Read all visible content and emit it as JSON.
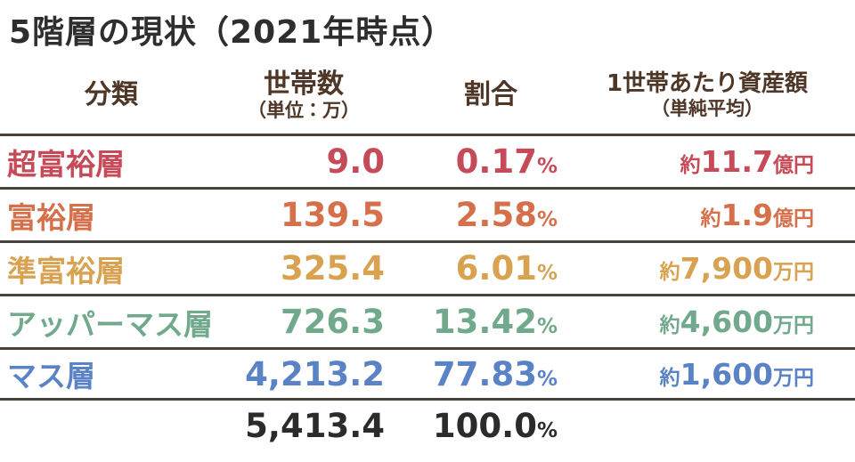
{
  "title": "5階層の現状（2021年時点）",
  "colors": {
    "title_text": "#2e2e2e",
    "header_text": "#4f3728",
    "separator_line": "#49423a",
    "total_text": "#2b2b2b"
  },
  "table": {
    "headers": {
      "category": "分類",
      "households": "世帯数",
      "households_unit": "（単位：万）",
      "ratio": "割合",
      "asset": "1世帯あたり資産額",
      "asset_note": "（単純平均）"
    },
    "percent_sign": "%",
    "rows": [
      {
        "label": "超富裕層",
        "households": "9.0",
        "ratio": "0.17",
        "asset_prefix": "約",
        "asset_value": "11.7",
        "asset_unit": "億円",
        "color": "#c64a57"
      },
      {
        "label": "富裕層",
        "households": "139.5",
        "ratio": "2.58",
        "asset_prefix": "約",
        "asset_value": "1.9",
        "asset_unit": "億円",
        "color": "#d5704b"
      },
      {
        "label": "準富裕層",
        "households": "325.4",
        "ratio": "6.01",
        "asset_prefix": "約",
        "asset_value": "7,900",
        "asset_unit": "万円",
        "color": "#d9a250"
      },
      {
        "label": "アッパーマス層",
        "households": "726.3",
        "ratio": "13.42",
        "asset_prefix": "約",
        "asset_value": "4,600",
        "asset_unit": "万円",
        "color": "#70a98c"
      },
      {
        "label": "マス層",
        "households": "4,213.2",
        "ratio": "77.83",
        "asset_prefix": "約",
        "asset_value": "1,600",
        "asset_unit": "万円",
        "color": "#5a83c5"
      }
    ],
    "total": {
      "households": "5,413.4",
      "ratio": "100.0",
      "color": "#2b2b2b"
    }
  },
  "chart_data": {
    "type": "table",
    "title": "5階層の現状（2021年時点）",
    "columns": [
      "分類",
      "世帯数（単位：万）",
      "割合",
      "1世帯あたり資産額（単純平均）"
    ],
    "rows": [
      [
        "超富裕層",
        9.0,
        "0.17%",
        "約11.7億円"
      ],
      [
        "富裕層",
        139.5,
        "2.58%",
        "約1.9億円"
      ],
      [
        "準富裕層",
        325.4,
        "6.01%",
        "約7,900万円"
      ],
      [
        "アッパーマス層",
        726.3,
        "13.42%",
        "約4,600万円"
      ],
      [
        "マス層",
        4213.2,
        "77.83%",
        "約1,600万円"
      ]
    ],
    "total_row": [
      "",
      5413.4,
      "100.0%",
      ""
    ]
  }
}
